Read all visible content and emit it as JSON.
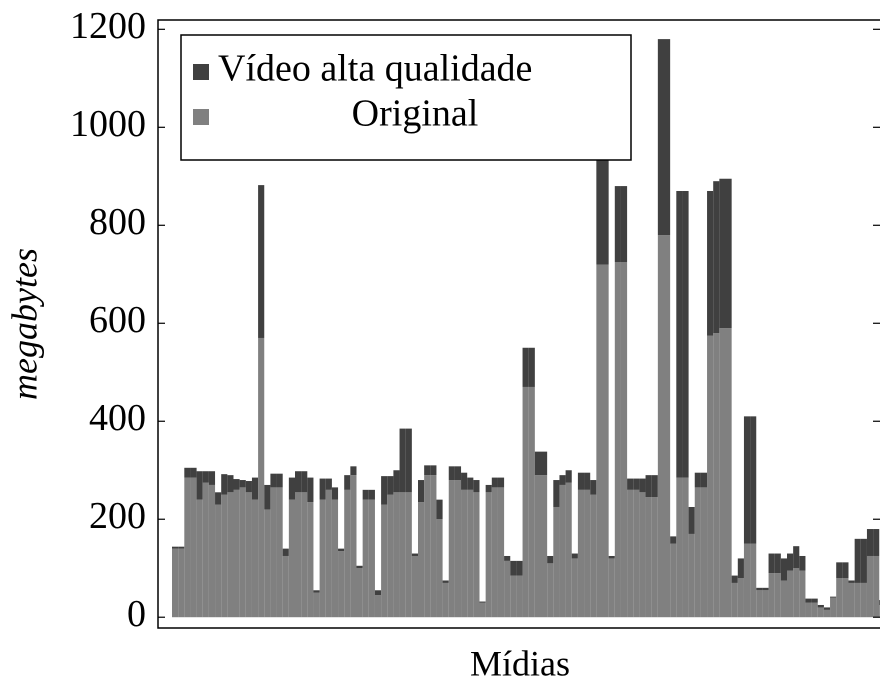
{
  "chart_data": {
    "type": "stacked_bar",
    "x_label": "Mídias",
    "y_label": "megabytes",
    "ylim": [
      -22,
      1219
    ],
    "yticks": [
      0,
      200,
      400,
      600,
      800,
      1000,
      1200
    ],
    "legend": "top-left",
    "series": [
      {
        "name": "Vídeo alta qualidade",
        "color": "#404040",
        "values": [
          4,
          4,
          20,
          20,
          58,
          23,
          28,
          25,
          42,
          35,
          22,
          15,
          23,
          45,
          312,
          50,
          28,
          28,
          15,
          45,
          43,
          43,
          50,
          5,
          43,
          23,
          25,
          5,
          30,
          18,
          5,
          20,
          20,
          10,
          58,
          38,
          45,
          130,
          130,
          5,
          45,
          20,
          20,
          40,
          5,
          28,
          28,
          35,
          25,
          25,
          2,
          15,
          20,
          20,
          10,
          30,
          30,
          80,
          80,
          48,
          48,
          15,
          55,
          20,
          25,
          10,
          35,
          35,
          30,
          230,
          230,
          5,
          155,
          155,
          23,
          23,
          28,
          45,
          45,
          400,
          400,
          15,
          585,
          585,
          55,
          30,
          30,
          295,
          310,
          305,
          305,
          15,
          40,
          260,
          260,
          5,
          5,
          40,
          40,
          45,
          35,
          45,
          30,
          8,
          8,
          5,
          5,
          2,
          32,
          32,
          5,
          90,
          90,
          55,
          55,
          10
        ]
      },
      {
        "name": "Original",
        "color": "#808080",
        "values": [
          140,
          140,
          285,
          285,
          240,
          275,
          270,
          230,
          250,
          255,
          260,
          265,
          255,
          240,
          570,
          220,
          265,
          265,
          125,
          240,
          255,
          255,
          235,
          50,
          240,
          260,
          240,
          135,
          260,
          290,
          100,
          240,
          240,
          45,
          230,
          250,
          255,
          255,
          255,
          125,
          235,
          290,
          290,
          200,
          70,
          280,
          280,
          260,
          260,
          255,
          30,
          255,
          265,
          265,
          115,
          85,
          85,
          470,
          470,
          290,
          290,
          110,
          225,
          270,
          275,
          120,
          260,
          260,
          250,
          720,
          720,
          120,
          725,
          725,
          260,
          260,
          255,
          245,
          245,
          780,
          780,
          150,
          285,
          285,
          170,
          265,
          265,
          575,
          580,
          590,
          590,
          70,
          80,
          150,
          150,
          55,
          55,
          90,
          90,
          75,
          95,
          100,
          95,
          30,
          30,
          20,
          15,
          40,
          80,
          80,
          70,
          70,
          70,
          125,
          125,
          25
        ]
      }
    ]
  }
}
